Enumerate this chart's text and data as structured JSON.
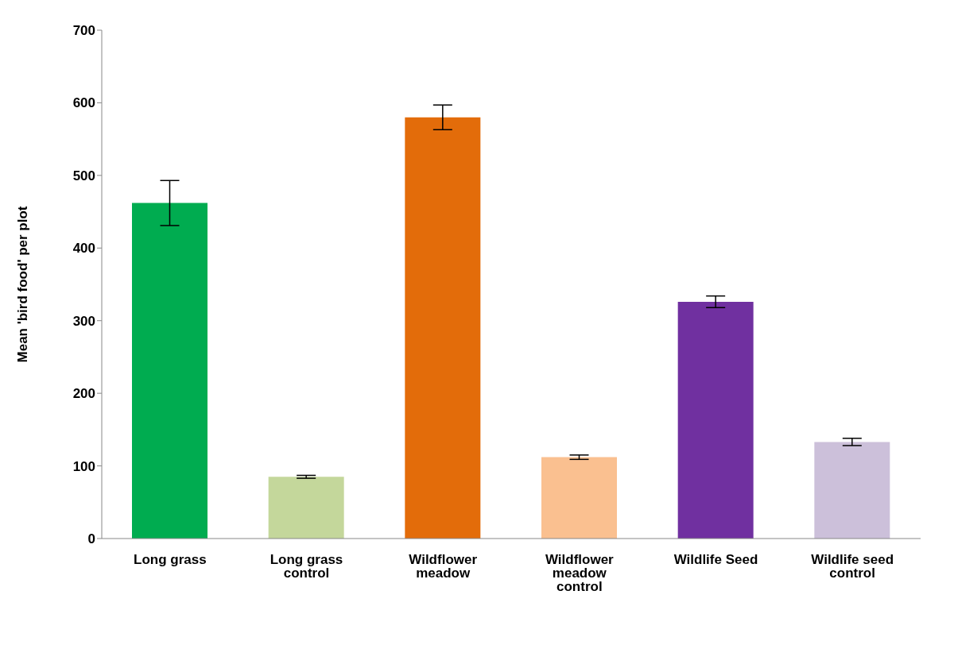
{
  "chart_data": {
    "type": "bar",
    "ylabel": "Mean 'bird food' per plot",
    "categories": [
      "Long grass",
      "Long grass control",
      "Wildflower meadow",
      "Wildflower meadow control",
      "Wildlife Seed",
      "Wildlife seed control"
    ],
    "values": [
      462,
      85,
      580,
      112,
      326,
      133
    ],
    "errors": [
      31,
      2,
      17,
      3,
      8,
      5
    ],
    "colors": [
      "#00ac50",
      "#c4d79b",
      "#e36c0a",
      "#fac090",
      "#7030a0",
      "#ccc0da"
    ],
    "ylim": [
      0,
      700
    ],
    "yticks": [
      0,
      100,
      200,
      300,
      400,
      500,
      600,
      700
    ],
    "grid": false
  }
}
